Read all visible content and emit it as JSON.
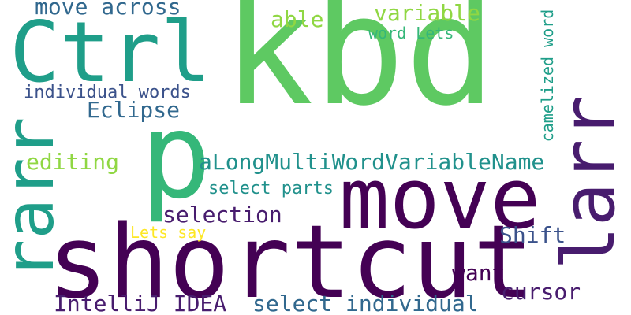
{
  "colors": {
    "background": "#ffffff",
    "dark_purple": "#440154",
    "purple": "#481c6e",
    "indigo": "#3b528b",
    "blue_teal": "#31688e",
    "teal": "#21918c",
    "teal_green": "#1f9e89",
    "green": "#35b779",
    "bright_green": "#5ec962",
    "yellow_green": "#90d743",
    "yellow": "#fde725"
  },
  "words": {
    "kbd": "kbd",
    "ctrl": "Ctrl",
    "p": "p",
    "move": "move",
    "shortcut": "shortcut",
    "rarr": "rarr",
    "larr": "larr",
    "move_across": "move across",
    "able": "able",
    "variable": "variable",
    "word_lets": "word Lets",
    "individual_words": "individual words",
    "eclipse": "Eclipse",
    "editing": "editing",
    "camel_var": "aLongMultiWordVariableName",
    "select_parts": "select parts",
    "selection": "selection",
    "lets_say": "Lets say",
    "shift": "Shift",
    "want": "want",
    "cursor": "cursor",
    "intellij": "IntelliJ IDEA",
    "select_individual": "select individual",
    "camelized_word": "camelized word"
  }
}
